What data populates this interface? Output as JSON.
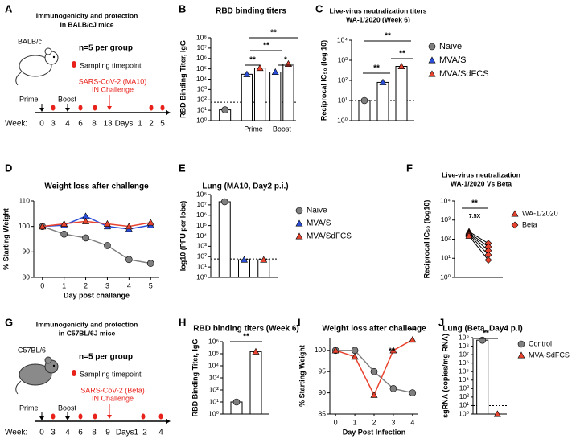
{
  "panel_labels": [
    "A",
    "B",
    "C",
    "D",
    "E",
    "F",
    "G",
    "H",
    "I",
    "J"
  ],
  "diagrams": [
    {
      "title_lines": [
        "Immunogenicity and protection",
        "in BALB/cJ mice"
      ],
      "group_size": "n=5 per group",
      "strain": "BALB/c",
      "sampling": "Sampling timepoint",
      "prime": "Prime",
      "boost": "Boost",
      "challenge_lines": [
        "SARS-CoV-2 (MA10)",
        "IN Challenge"
      ],
      "week_label": "Week:",
      "timeline": [
        "0",
        "3",
        "4",
        "6",
        "8",
        "13",
        "Days",
        "1",
        "2",
        "5"
      ]
    },
    {
      "title_lines": [
        "Immunogenicity and protection",
        "in C57BL/6J mice"
      ],
      "group_size": "n=5 per group",
      "strain": "C57BL/6",
      "sampling": "Sampling timepoint",
      "prime": "Prime",
      "boost": "Boost",
      "challenge_lines": [
        "SARS-CoV-2 (Beta)",
        "IN Challenge"
      ],
      "week_label": "Week:",
      "timeline": [
        "0",
        "3",
        "4",
        "6",
        "8",
        "9",
        "Days1",
        "2",
        "4"
      ]
    }
  ],
  "chart_data": [
    {
      "type": "bar",
      "title": "RBD binding titers",
      "y_label": "RBD Binding Titer, IgG",
      "log_y": true,
      "ylim": [
        1,
        100000000
      ],
      "yticks": [
        {
          "value": 1,
          "label": "10⁰"
        },
        {
          "value": 10,
          "label": "10¹"
        },
        {
          "value": 100,
          "label": "10²"
        },
        {
          "value": 1000,
          "label": "10³"
        },
        {
          "value": 10000,
          "label": "10⁴"
        },
        {
          "value": 100000,
          "label": "10⁵"
        },
        {
          "value": 1000000,
          "label": "10⁶"
        },
        {
          "value": 10000000,
          "label": "10⁷"
        },
        {
          "value": 100000000,
          "label": "10⁸"
        }
      ],
      "categories": [
        null,
        "Prime",
        "Boost"
      ],
      "series": [
        {
          "color": "#7f7f7f",
          "marker": "circle",
          "values": [
            11,
            null,
            null
          ]
        },
        {
          "color": "#2b4fd8",
          "marker": "triangle",
          "values": [
            null,
            30000,
            50000
          ]
        },
        {
          "color": "#e8432e",
          "marker": "triangle",
          "values": [
            null,
            120000,
            300000
          ]
        }
      ],
      "hline": 60,
      "annotations": [
        "**",
        "**",
        "**",
        "*"
      ]
    },
    {
      "type": "bar",
      "title": "Live-virus neutralization titers",
      "subtitle": "WA-1/2020 (Week 6)",
      "y_label": "Reciprocal IC₅₀ (log 10)",
      "log_y": true,
      "ylim": [
        1,
        10000
      ],
      "yticks": [
        {
          "value": 1,
          "label": "10⁰"
        },
        {
          "value": 10,
          "label": "10¹"
        },
        {
          "value": 100,
          "label": "10²"
        },
        {
          "value": 1000,
          "label": "10³"
        },
        {
          "value": 10000,
          "label": "10⁴"
        }
      ],
      "categories": [
        null
      ],
      "series": [
        {
          "name": "Naive",
          "color": "#7f7f7f",
          "marker": "circle",
          "values": [
            10
          ]
        },
        {
          "name": "MVA/S",
          "color": "#2b4fd8",
          "marker": "triangle",
          "values": [
            80
          ]
        },
        {
          "name": "MVA/SdFCS",
          "color": "#e8432e",
          "marker": "triangle",
          "values": [
            500
          ]
        }
      ],
      "hline": 10,
      "annotations": [
        "**",
        "**",
        "**"
      ],
      "legend": "right"
    },
    {
      "type": "line",
      "title": "Weight loss after challenge",
      "y_label": "% Starting Weight",
      "x_label": "Day post challange",
      "x": [
        0,
        1,
        2,
        3,
        4,
        5
      ],
      "xlim": [
        -0.4,
        5.4
      ],
      "xticks": [
        0,
        1,
        2,
        3,
        4,
        5
      ],
      "ylim": [
        80,
        110
      ],
      "yticks": [
        80,
        90,
        100,
        110
      ],
      "series": [
        {
          "color": "#7f7f7f",
          "marker": "circle",
          "values": [
            100,
            97,
            95.5,
            92.5,
            87,
            85.5
          ]
        },
        {
          "color": "#2b4fd8",
          "marker": "triangle",
          "values": [
            100,
            100.5,
            104,
            100,
            99,
            100.5
          ]
        },
        {
          "color": "#e8432e",
          "marker": "triangle",
          "values": [
            100,
            101,
            102,
            101,
            100,
            101.5
          ]
        }
      ]
    },
    {
      "type": "bar",
      "title": "Lung (MA10, Day2 p.i.)",
      "y_label": "log10 (PFU per lobe)",
      "log_y": true,
      "ylim": [
        1,
        100000000
      ],
      "yticks": [
        {
          "value": 1,
          "label": "10⁰"
        },
        {
          "value": 10,
          "label": "10¹"
        },
        {
          "value": 100,
          "label": "10²"
        },
        {
          "value": 1000,
          "label": "10³"
        },
        {
          "value": 10000,
          "label": "10⁴"
        },
        {
          "value": 100000,
          "label": "10⁵"
        },
        {
          "value": 1000000,
          "label": "10⁶"
        },
        {
          "value": 10000000,
          "label": "10⁷"
        },
        {
          "value": 100000000,
          "label": "10⁸"
        }
      ],
      "categories": [
        null
      ],
      "series": [
        {
          "name": "Naive",
          "color": "#7f7f7f",
          "marker": "circle",
          "values": [
            20000000
          ]
        },
        {
          "name": "MVA/S",
          "color": "#2b4fd8",
          "marker": "triangle",
          "values": [
            50
          ]
        },
        {
          "name": "MVA/SdFCS",
          "color": "#e8432e",
          "marker": "triangle",
          "values": [
            50
          ]
        }
      ],
      "hline": 60,
      "legend": "right"
    },
    {
      "type": "paired",
      "title": "Live-virus neutralization",
      "subtitle": "WA-1/2020 Vs Beta",
      "y_label": "Reciprocal IC₅₀ (log10)",
      "log_y": true,
      "ylim": [
        1,
        10000
      ],
      "yticks": [
        {
          "value": 1,
          "label": "10⁰"
        },
        {
          "value": 10,
          "label": "10¹"
        },
        {
          "value": 100,
          "label": "10²"
        },
        {
          "value": 1000,
          "label": "10³"
        },
        {
          "value": 10000,
          "label": "10⁴"
        }
      ],
      "series": [
        {
          "name": "WA-1/2020",
          "color": "#e8432e",
          "marker": "triangle",
          "values": [
            250,
            220,
            200,
            180,
            150
          ]
        },
        {
          "name": "Beta",
          "color": "#e8432e",
          "marker": "diamond",
          "values": [
            60,
            40,
            25,
            15,
            8
          ]
        }
      ],
      "annotations": [
        "**",
        "7.5X"
      ],
      "legend": "right"
    },
    {
      "type": "bar",
      "title": "RBD binding titers (Week 6)",
      "y_label": "RBD Binding Titer, IgG",
      "log_y": true,
      "ylim": [
        1,
        1000000
      ],
      "yticks": [
        {
          "value": 1,
          "label": "10⁰"
        },
        {
          "value": 10,
          "label": "10¹"
        },
        {
          "value": 100,
          "label": "10²"
        },
        {
          "value": 1000,
          "label": "10³"
        },
        {
          "value": 10000,
          "label": "10⁴"
        },
        {
          "value": 100000,
          "label": "10⁵"
        },
        {
          "value": 1000000,
          "label": "10⁶"
        }
      ],
      "categories": [
        null
      ],
      "series": [
        {
          "color": "#7f7f7f",
          "marker": "circle",
          "values": [
            10
          ]
        },
        {
          "color": "#e8432e",
          "marker": "triangle",
          "values": [
            150000
          ]
        }
      ],
      "annotations": [
        "**"
      ]
    },
    {
      "type": "line",
      "title": "Weight loss after challenge",
      "y_label": "% Starting Weight",
      "x_label": "Day Post Infection",
      "x": [
        0,
        1,
        2,
        3,
        4
      ],
      "xlim": [
        -0.3,
        4.3
      ],
      "xticks": [
        0,
        1,
        2,
        3,
        4
      ],
      "ylim": [
        85,
        103
      ],
      "yticks": [
        85,
        90,
        95,
        100
      ],
      "series": [
        {
          "color": "#7f7f7f",
          "marker": "circle",
          "values": [
            100,
            100,
            95,
            91,
            90
          ]
        },
        {
          "color": "#e8432e",
          "marker": "triangle",
          "values": [
            100,
            98.5,
            89.5,
            100,
            102.5
          ]
        }
      ],
      "annotations": [
        "**",
        "**"
      ]
    },
    {
      "type": "bar",
      "title": "Lung (Beta, Day4 p.i)",
      "y_label": "sgRNA (copies/mg RNA)",
      "log_y": true,
      "ylim": [
        1,
        1000000000
      ],
      "yticks": [
        {
          "value": 1,
          "label": "10⁰"
        },
        {
          "value": 10,
          "label": "10¹"
        },
        {
          "value": 100,
          "label": "10²"
        },
        {
          "value": 1000,
          "label": "10³"
        },
        {
          "value": 10000,
          "label": "10⁴"
        },
        {
          "value": 100000,
          "label": "10⁵"
        },
        {
          "value": 1000000,
          "label": "10⁶"
        },
        {
          "value": 10000000,
          "label": "10⁷"
        },
        {
          "value": 100000000,
          "label": "10⁸"
        },
        {
          "value": 1000000000,
          "label": "10⁹"
        }
      ],
      "categories": [
        null
      ],
      "series": [
        {
          "name": "Control",
          "color": "#7f7f7f",
          "marker": "circle",
          "values": [
            500000000
          ]
        },
        {
          "name": "MVA-SdFCS",
          "color": "#e8432e",
          "marker": "triangle",
          "values": [
            1
          ]
        }
      ],
      "hline": 10,
      "annotations": [
        "**"
      ],
      "legend": "right"
    }
  ]
}
